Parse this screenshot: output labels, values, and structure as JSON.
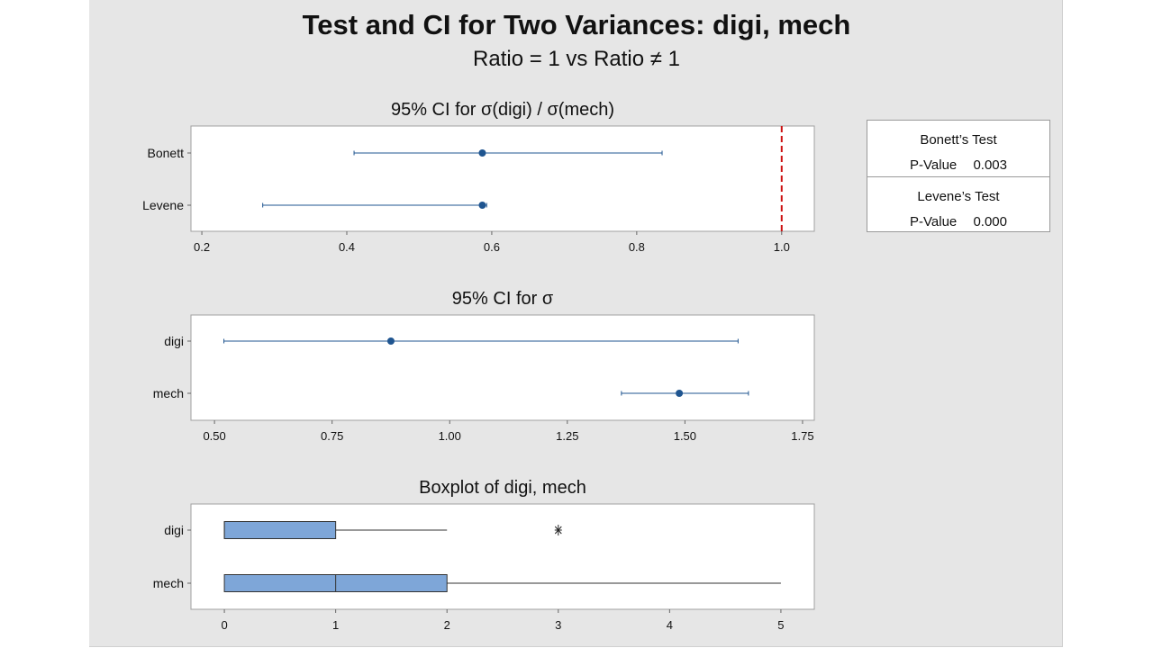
{
  "title": "Test and CI for Two Variances: digi, mech",
  "subtitle": "Ratio = 1 vs Ratio ≠ 1",
  "results": {
    "bonett": {
      "title": "Bonett’s Test",
      "pvalue_label": "P-Value",
      "pvalue": "0.003"
    },
    "levene": {
      "title": "Levene’s Test",
      "pvalue_label": "P-Value",
      "pvalue": "0.000"
    }
  },
  "colors": {
    "interval": "#1f5590",
    "box_fill": "#7ea6d8",
    "reference": "#cc1111"
  },
  "chart_data": [
    {
      "type": "interval",
      "title": "95% CI for σ(digi) / σ(mech)",
      "categories": [
        "Bonett",
        "Levene"
      ],
      "estimates": [
        0.587,
        0.587
      ],
      "lower": [
        0.41,
        0.284
      ],
      "upper": [
        0.835,
        0.593
      ],
      "xlim": [
        0.185,
        1.045
      ],
      "xticks": [
        "0.2",
        "0.4",
        "0.6",
        "0.8",
        "1.0"
      ],
      "reference_line": 1.0
    },
    {
      "type": "interval",
      "title": "95% CI for σ",
      "categories": [
        "digi",
        "mech"
      ],
      "estimates": [
        0.875,
        1.488
      ],
      "lower": [
        0.52,
        1.365
      ],
      "upper": [
        1.613,
        1.635
      ],
      "xlim": [
        0.45,
        1.775
      ],
      "xticks": [
        "0.50",
        "0.75",
        "1.00",
        "1.25",
        "1.50",
        "1.75"
      ]
    },
    {
      "type": "boxplot",
      "title": "Boxplot of digi, mech",
      "categories": [
        "digi",
        "mech"
      ],
      "boxes": [
        {
          "min": 0,
          "q1": 0,
          "median": 0,
          "q3": 1,
          "max": 2,
          "outliers": [
            3
          ]
        },
        {
          "min": 0,
          "q1": 0,
          "median": 1,
          "q3": 2,
          "max": 5,
          "outliers": []
        }
      ],
      "xlim": [
        -0.3,
        5.3
      ],
      "xticks": [
        "0",
        "1",
        "2",
        "3",
        "4",
        "5"
      ]
    }
  ]
}
